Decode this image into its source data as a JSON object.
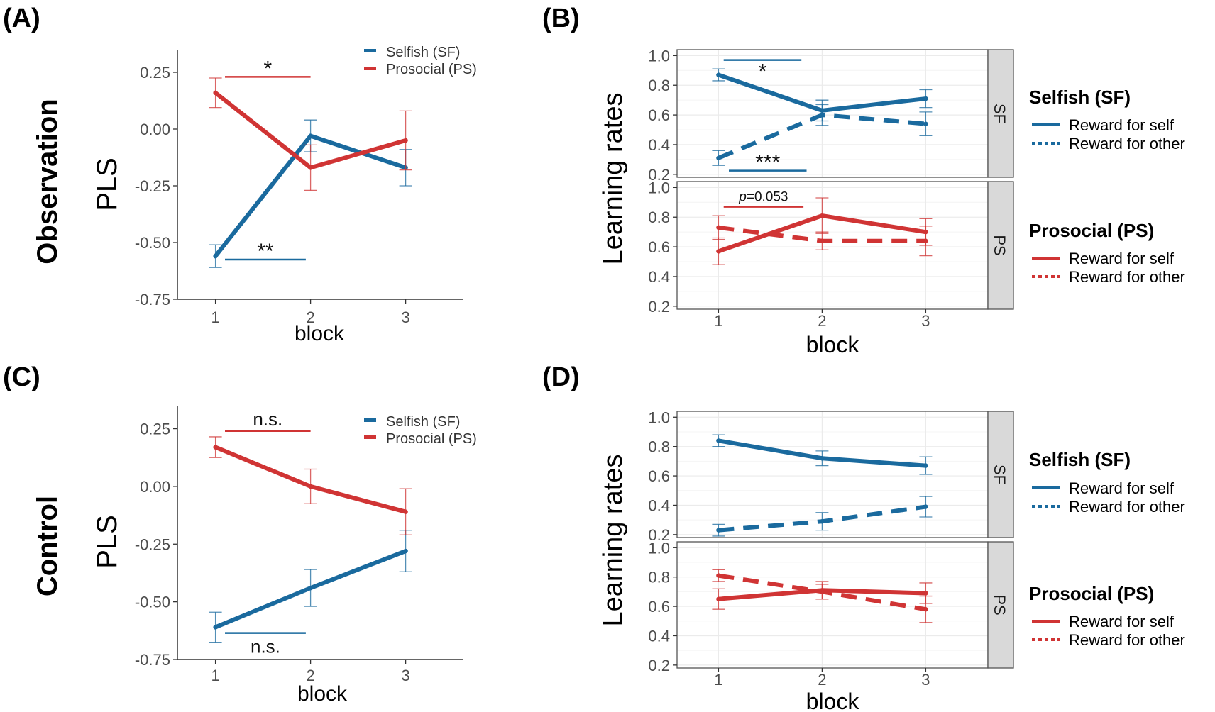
{
  "colors": {
    "sf": "#1a6a9e",
    "ps": "#d03434",
    "axis": "#333333",
    "strip": "#d9d9d9",
    "grid": "#ebebeb"
  },
  "panels": {
    "A": {
      "label": "(A)",
      "row_label": "Observation",
      "ylabel": "PLS",
      "xlabel": "block",
      "legend": [
        "Selfish (SF)",
        "Prosocial (PS)"
      ]
    },
    "B": {
      "label": "(B)",
      "ylabel": "Learning rates",
      "xlabel": "block"
    },
    "C": {
      "label": "(C)",
      "row_label": "Control",
      "ylabel": "PLS",
      "xlabel": "block",
      "legend": [
        "Selfish (SF)",
        "Prosocial (PS)"
      ]
    },
    "D": {
      "label": "(D)",
      "ylabel": "Learning rates",
      "xlabel": "block"
    }
  },
  "facet_legend": {
    "sf_title": "Selfish (SF)",
    "ps_title": "Prosocial (PS)",
    "self": "Reward for self",
    "other": "Reward for other"
  },
  "chart_data": [
    {
      "id": "A",
      "type": "line",
      "title": "(A) Observation",
      "xlabel": "block",
      "ylabel": "PLS",
      "x": [
        1,
        2,
        3
      ],
      "xlim": [
        0.6,
        3.6
      ],
      "ylim": [
        -0.75,
        0.35
      ],
      "yticks": [
        -0.75,
        -0.5,
        -0.25,
        0.0,
        0.25
      ],
      "ytick_labels": [
        "-0.75",
        "-0.50",
        "-0.25",
        "0.00",
        "0.25"
      ],
      "series": [
        {
          "name": "Selfish (SF)",
          "color": "sf",
          "values": [
            -0.56,
            -0.03,
            -0.17
          ],
          "errors": [
            0.05,
            0.07,
            0.08
          ]
        },
        {
          "name": "Prosocial (PS)",
          "color": "ps",
          "values": [
            0.16,
            -0.17,
            -0.05
          ],
          "errors": [
            0.065,
            0.1,
            0.13
          ]
        }
      ],
      "annotations": [
        {
          "text": "*",
          "color": "ps",
          "x_from": 1.1,
          "x_to": 2.0,
          "y": 0.23,
          "text_pos": "above"
        },
        {
          "text": "**",
          "color": "sf",
          "x_from": 1.1,
          "x_to": 1.95,
          "y": -0.575,
          "text_pos": "above"
        }
      ]
    },
    {
      "id": "B",
      "type": "line",
      "title": "(B)",
      "xlabel": "block",
      "ylabel": "Learning rates",
      "x": [
        1,
        2,
        3
      ],
      "xlim": [
        0.6,
        3.6
      ],
      "ylim": [
        0.18,
        1.04
      ],
      "yticks": [
        0.2,
        0.4,
        0.6,
        0.8,
        1.0
      ],
      "ytick_labels": [
        "0.2",
        "0.4",
        "0.6",
        "0.8",
        "1.0"
      ],
      "facets": [
        {
          "strip": "SF",
          "series": [
            {
              "name": "Reward for self",
              "color": "sf",
              "style": "solid",
              "values": [
                0.87,
                0.63,
                0.71
              ],
              "errors": [
                0.04,
                0.07,
                0.06
              ]
            },
            {
              "name": "Reward for other",
              "color": "sf",
              "style": "dashed",
              "values": [
                0.31,
                0.6,
                0.54
              ],
              "errors": [
                0.05,
                0.07,
                0.08
              ]
            }
          ],
          "annotations": [
            {
              "text": "*",
              "color": "sf",
              "x_from": 1.05,
              "x_to": 1.8,
              "y": 0.97,
              "text_pos": "below"
            },
            {
              "text": "***",
              "color": "sf",
              "x_from": 1.1,
              "x_to": 1.85,
              "y": 0.225,
              "text_pos": "above"
            }
          ]
        },
        {
          "strip": "PS",
          "series": [
            {
              "name": "Reward for self",
              "color": "ps",
              "style": "solid",
              "values": [
                0.57,
                0.81,
                0.7
              ],
              "errors": [
                0.09,
                0.12,
                0.09
              ]
            },
            {
              "name": "Reward for other",
              "color": "ps",
              "style": "dashed",
              "values": [
                0.73,
                0.64,
                0.64
              ],
              "errors": [
                0.08,
                0.06,
                0.1
              ]
            }
          ],
          "annotations": [
            {
              "text": "p=0.053",
              "color": "ps",
              "x_from": 1.05,
              "x_to": 1.82,
              "y": 0.87,
              "text_pos": "above"
            }
          ]
        }
      ]
    },
    {
      "id": "C",
      "type": "line",
      "title": "(C) Control",
      "xlabel": "block",
      "ylabel": "PLS",
      "x": [
        1,
        2,
        3
      ],
      "xlim": [
        0.6,
        3.6
      ],
      "ylim": [
        -0.75,
        0.35
      ],
      "yticks": [
        -0.75,
        -0.5,
        -0.25,
        0.0,
        0.25
      ],
      "ytick_labels": [
        "-0.75",
        "-0.50",
        "-0.25",
        "0.00",
        "0.25"
      ],
      "series": [
        {
          "name": "Selfish (SF)",
          "color": "sf",
          "values": [
            -0.61,
            -0.44,
            -0.28
          ],
          "errors": [
            0.065,
            0.08,
            0.09
          ]
        },
        {
          "name": "Prosocial (PS)",
          "color": "ps",
          "values": [
            0.17,
            0.0,
            -0.11
          ],
          "errors": [
            0.045,
            0.075,
            0.1
          ]
        }
      ],
      "annotations": [
        {
          "text": "n.s.",
          "color": "ps",
          "x_from": 1.1,
          "x_to": 2.0,
          "y": 0.24,
          "text_pos": "above"
        },
        {
          "text": "n.s.",
          "color": "sf",
          "x_from": 1.1,
          "x_to": 1.95,
          "y": -0.635,
          "text_pos": "below"
        }
      ]
    },
    {
      "id": "D",
      "type": "line",
      "title": "(D)",
      "xlabel": "block",
      "ylabel": "Learning rates",
      "x": [
        1,
        2,
        3
      ],
      "xlim": [
        0.6,
        3.6
      ],
      "ylim": [
        0.18,
        1.04
      ],
      "yticks": [
        0.2,
        0.4,
        0.6,
        0.8,
        1.0
      ],
      "ytick_labels": [
        "0.2",
        "0.4",
        "0.6",
        "0.8",
        "1.0"
      ],
      "facets": [
        {
          "strip": "SF",
          "series": [
            {
              "name": "Reward for self",
              "color": "sf",
              "style": "solid",
              "values": [
                0.84,
                0.72,
                0.67
              ],
              "errors": [
                0.04,
                0.05,
                0.06
              ]
            },
            {
              "name": "Reward for other",
              "color": "sf",
              "style": "dashed",
              "values": [
                0.23,
                0.29,
                0.39
              ],
              "errors": [
                0.04,
                0.06,
                0.07
              ]
            }
          ],
          "annotations": []
        },
        {
          "strip": "PS",
          "series": [
            {
              "name": "Reward for self",
              "color": "ps",
              "style": "solid",
              "values": [
                0.65,
                0.71,
                0.69
              ],
              "errors": [
                0.07,
                0.06,
                0.07
              ]
            },
            {
              "name": "Reward for other",
              "color": "ps",
              "style": "dashed",
              "values": [
                0.81,
                0.7,
                0.58
              ],
              "errors": [
                0.04,
                0.05,
                0.09
              ]
            }
          ],
          "annotations": []
        }
      ]
    }
  ]
}
